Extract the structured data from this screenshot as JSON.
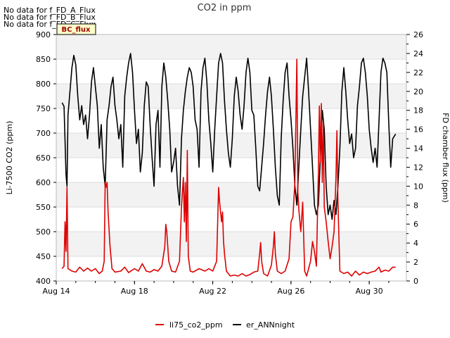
{
  "chart_data": {
    "type": "line",
    "title": "CO2 in ppm",
    "xlabel": "",
    "ylabel": "Li-7500 CO2 (ppm)",
    "y2label": "FD chamber flux (ppm)",
    "x_tick_labels": [
      "Aug 14",
      "Aug 18",
      "Aug 22",
      "Aug 26",
      "Aug 30"
    ],
    "x_tick_days": [
      14,
      18,
      22,
      26,
      30
    ],
    "xlim_days": [
      14,
      31.9
    ],
    "ylim": [
      400,
      900
    ],
    "y_ticks": [
      400,
      450,
      500,
      550,
      600,
      650,
      700,
      750,
      800,
      850,
      900
    ],
    "y2lim": [
      0,
      26
    ],
    "y2_ticks": [
      0,
      2,
      4,
      6,
      8,
      10,
      12,
      14,
      16,
      18,
      20,
      22,
      24,
      26
    ],
    "no_data_messages": [
      "No data for f_FD_A_Flux",
      "No data for f_FD_B_Flux",
      "No data for f_FD_C_Flux"
    ],
    "badge": "BC_flux",
    "legend_position": "bottom-center",
    "series": [
      {
        "name": "li75_co2_ppm",
        "axis": "left",
        "color": "#dd0000",
        "points": [
          [
            14.3,
            425
          ],
          [
            14.4,
            430
          ],
          [
            14.45,
            520
          ],
          [
            14.5,
            460
          ],
          [
            14.55,
            590
          ],
          [
            14.6,
            425
          ],
          [
            14.8,
            420
          ],
          [
            15.0,
            418
          ],
          [
            15.2,
            428
          ],
          [
            15.4,
            420
          ],
          [
            15.6,
            426
          ],
          [
            15.8,
            420
          ],
          [
            16.0,
            425
          ],
          [
            16.2,
            415
          ],
          [
            16.35,
            420
          ],
          [
            16.45,
            440
          ],
          [
            16.5,
            600
          ],
          [
            16.55,
            590
          ],
          [
            16.6,
            600
          ],
          [
            16.65,
            540
          ],
          [
            16.75,
            470
          ],
          [
            16.85,
            425
          ],
          [
            17.0,
            418
          ],
          [
            17.3,
            420
          ],
          [
            17.5,
            428
          ],
          [
            17.7,
            417
          ],
          [
            18.0,
            425
          ],
          [
            18.2,
            420
          ],
          [
            18.4,
            435
          ],
          [
            18.6,
            420
          ],
          [
            18.8,
            418
          ],
          [
            19.0,
            423
          ],
          [
            19.2,
            420
          ],
          [
            19.4,
            430
          ],
          [
            19.55,
            470
          ],
          [
            19.6,
            515
          ],
          [
            19.65,
            500
          ],
          [
            19.75,
            440
          ],
          [
            19.9,
            420
          ],
          [
            20.1,
            418
          ],
          [
            20.3,
            440
          ],
          [
            20.4,
            550
          ],
          [
            20.45,
            580
          ],
          [
            20.5,
            610
          ],
          [
            20.55,
            520
          ],
          [
            20.6,
            600
          ],
          [
            20.65,
            480
          ],
          [
            20.7,
            665
          ],
          [
            20.75,
            450
          ],
          [
            20.85,
            420
          ],
          [
            21.0,
            418
          ],
          [
            21.3,
            425
          ],
          [
            21.6,
            420
          ],
          [
            21.8,
            425
          ],
          [
            22.0,
            420
          ],
          [
            22.2,
            440
          ],
          [
            22.3,
            590
          ],
          [
            22.35,
            560
          ],
          [
            22.4,
            540
          ],
          [
            22.45,
            520
          ],
          [
            22.5,
            540
          ],
          [
            22.55,
            480
          ],
          [
            22.6,
            455
          ],
          [
            22.7,
            420
          ],
          [
            22.9,
            410
          ],
          [
            23.1,
            412
          ],
          [
            23.3,
            410
          ],
          [
            23.5,
            415
          ],
          [
            23.7,
            410
          ],
          [
            23.9,
            413
          ],
          [
            24.1,
            418
          ],
          [
            24.3,
            420
          ],
          [
            24.4,
            455
          ],
          [
            24.45,
            478
          ],
          [
            24.5,
            440
          ],
          [
            24.6,
            415
          ],
          [
            24.8,
            410
          ],
          [
            25.0,
            432
          ],
          [
            25.1,
            470
          ],
          [
            25.15,
            500
          ],
          [
            25.2,
            455
          ],
          [
            25.3,
            420
          ],
          [
            25.5,
            415
          ],
          [
            25.7,
            420
          ],
          [
            25.9,
            445
          ],
          [
            26.0,
            520
          ],
          [
            26.1,
            530
          ],
          [
            26.2,
            600
          ],
          [
            26.3,
            850
          ],
          [
            26.35,
            580
          ],
          [
            26.4,
            545
          ],
          [
            26.5,
            500
          ],
          [
            26.6,
            560
          ],
          [
            26.7,
            420
          ],
          [
            26.8,
            410
          ],
          [
            27.0,
            440
          ],
          [
            27.1,
            480
          ],
          [
            27.2,
            460
          ],
          [
            27.3,
            430
          ],
          [
            27.4,
            620
          ],
          [
            27.45,
            755
          ],
          [
            27.5,
            640
          ],
          [
            27.55,
            760
          ],
          [
            27.6,
            600
          ],
          [
            27.65,
            720
          ],
          [
            27.7,
            550
          ],
          [
            27.8,
            520
          ],
          [
            27.9,
            480
          ],
          [
            28.0,
            445
          ],
          [
            28.1,
            470
          ],
          [
            28.2,
            500
          ],
          [
            28.3,
            610
          ],
          [
            28.35,
            705
          ],
          [
            28.4,
            560
          ],
          [
            28.5,
            420
          ],
          [
            28.7,
            415
          ],
          [
            28.9,
            418
          ],
          [
            29.1,
            410
          ],
          [
            29.3,
            420
          ],
          [
            29.5,
            412
          ],
          [
            29.7,
            418
          ],
          [
            29.9,
            415
          ],
          [
            30.1,
            418
          ],
          [
            30.3,
            420
          ],
          [
            30.5,
            428
          ],
          [
            30.6,
            418
          ],
          [
            30.8,
            422
          ],
          [
            31.0,
            420
          ],
          [
            31.2,
            428
          ],
          [
            31.35,
            428
          ]
        ]
      },
      {
        "name": "er_ANNnight",
        "axis": "right",
        "color": "#000000",
        "points": [
          [
            14.3,
            18.8
          ],
          [
            14.4,
            18.4
          ],
          [
            14.5,
            11.2
          ],
          [
            14.55,
            10.0
          ],
          [
            14.6,
            17.5
          ],
          [
            14.7,
            20.0
          ],
          [
            14.8,
            22.5
          ],
          [
            14.9,
            23.8
          ],
          [
            15.0,
            22.8
          ],
          [
            15.1,
            19.5
          ],
          [
            15.2,
            17.0
          ],
          [
            15.3,
            18.5
          ],
          [
            15.4,
            16.5
          ],
          [
            15.5,
            17.5
          ],
          [
            15.6,
            15.0
          ],
          [
            15.7,
            17.5
          ],
          [
            15.8,
            21.0
          ],
          [
            15.9,
            22.5
          ],
          [
            16.0,
            20.5
          ],
          [
            16.1,
            18.5
          ],
          [
            16.2,
            14.0
          ],
          [
            16.3,
            16.5
          ],
          [
            16.4,
            12.0
          ],
          [
            16.5,
            10.0
          ],
          [
            16.6,
            17.0
          ],
          [
            16.7,
            18.5
          ],
          [
            16.8,
            20.5
          ],
          [
            16.9,
            21.5
          ],
          [
            17.0,
            18.5
          ],
          [
            17.1,
            17.0
          ],
          [
            17.2,
            15.0
          ],
          [
            17.3,
            16.5
          ],
          [
            17.4,
            12.0
          ],
          [
            17.5,
            19.5
          ],
          [
            17.6,
            21.5
          ],
          [
            17.7,
            23.0
          ],
          [
            17.8,
            24.0
          ],
          [
            17.9,
            22.0
          ],
          [
            18.0,
            18.0
          ],
          [
            18.1,
            14.5
          ],
          [
            18.2,
            16.0
          ],
          [
            18.3,
            11.5
          ],
          [
            18.4,
            13.5
          ],
          [
            18.5,
            18.5
          ],
          [
            18.6,
            21.0
          ],
          [
            18.7,
            20.5
          ],
          [
            18.8,
            16.5
          ],
          [
            18.9,
            13.0
          ],
          [
            19.0,
            10.0
          ],
          [
            19.1,
            16.5
          ],
          [
            19.2,
            18.0
          ],
          [
            19.3,
            12.0
          ],
          [
            19.4,
            20.5
          ],
          [
            19.5,
            23.0
          ],
          [
            19.6,
            21.5
          ],
          [
            19.7,
            19.0
          ],
          [
            19.8,
            16.0
          ],
          [
            19.9,
            11.5
          ],
          [
            20.0,
            12.5
          ],
          [
            20.1,
            14.0
          ],
          [
            20.2,
            10.0
          ],
          [
            20.3,
            8.0
          ],
          [
            20.4,
            15.0
          ],
          [
            20.5,
            18.0
          ],
          [
            20.6,
            20.0
          ],
          [
            20.7,
            21.5
          ],
          [
            20.8,
            22.5
          ],
          [
            20.9,
            22.0
          ],
          [
            21.0,
            20.5
          ],
          [
            21.1,
            17.0
          ],
          [
            21.2,
            16.0
          ],
          [
            21.3,
            12.0
          ],
          [
            21.4,
            20.0
          ],
          [
            21.5,
            22.5
          ],
          [
            21.6,
            23.5
          ],
          [
            21.7,
            21.0
          ],
          [
            21.8,
            17.0
          ],
          [
            21.9,
            14.5
          ],
          [
            22.0,
            11.5
          ],
          [
            22.1,
            16.0
          ],
          [
            22.2,
            19.5
          ],
          [
            22.3,
            23.0
          ],
          [
            22.4,
            24.0
          ],
          [
            22.5,
            23.0
          ],
          [
            22.6,
            19.0
          ],
          [
            22.7,
            16.0
          ],
          [
            22.8,
            13.5
          ],
          [
            22.9,
            12.0
          ],
          [
            23.0,
            15.0
          ],
          [
            23.1,
            19.5
          ],
          [
            23.2,
            21.5
          ],
          [
            23.3,
            20.0
          ],
          [
            23.4,
            17.5
          ],
          [
            23.5,
            16.0
          ],
          [
            23.6,
            18.5
          ],
          [
            23.7,
            22.0
          ],
          [
            23.8,
            23.5
          ],
          [
            23.9,
            22.0
          ],
          [
            24.0,
            18.0
          ],
          [
            24.1,
            17.5
          ],
          [
            24.2,
            14.0
          ],
          [
            24.3,
            10.0
          ],
          [
            24.4,
            9.5
          ],
          [
            24.5,
            12.0
          ],
          [
            24.6,
            14.5
          ],
          [
            24.7,
            17.5
          ],
          [
            24.8,
            20.0
          ],
          [
            24.9,
            21.5
          ],
          [
            25.0,
            19.5
          ],
          [
            25.1,
            16.0
          ],
          [
            25.2,
            12.0
          ],
          [
            25.3,
            9.0
          ],
          [
            25.4,
            8.0
          ],
          [
            25.5,
            15.0
          ],
          [
            25.6,
            19.0
          ],
          [
            25.7,
            22.0
          ],
          [
            25.8,
            23.0
          ],
          [
            25.9,
            19.5
          ],
          [
            26.0,
            17.0
          ],
          [
            26.1,
            14.0
          ],
          [
            26.2,
            10.0
          ],
          [
            26.3,
            8.0
          ],
          [
            26.4,
            12.0
          ],
          [
            26.5,
            16.0
          ],
          [
            26.6,
            19.5
          ],
          [
            26.7,
            21.5
          ],
          [
            26.8,
            23.5
          ],
          [
            26.9,
            20.0
          ],
          [
            27.0,
            16.0
          ],
          [
            27.1,
            12.0
          ],
          [
            27.2,
            8.0
          ],
          [
            27.3,
            7.0
          ],
          [
            27.4,
            8.0
          ],
          [
            27.5,
            13.0
          ],
          [
            27.6,
            18.0
          ],
          [
            27.7,
            16.0
          ],
          [
            27.8,
            10.0
          ],
          [
            27.9,
            7.0
          ],
          [
            28.0,
            8.0
          ],
          [
            28.1,
            6.5
          ],
          [
            28.2,
            8.5
          ],
          [
            28.3,
            7.0
          ],
          [
            28.4,
            10.0
          ],
          [
            28.5,
            14.0
          ],
          [
            28.6,
            20.0
          ],
          [
            28.7,
            22.5
          ],
          [
            28.8,
            20.0
          ],
          [
            28.9,
            17.0
          ],
          [
            29.0,
            14.5
          ],
          [
            29.1,
            15.5
          ],
          [
            29.2,
            13.0
          ],
          [
            29.3,
            14.0
          ],
          [
            29.4,
            18.5
          ],
          [
            29.5,
            20.5
          ],
          [
            29.6,
            23.0
          ],
          [
            29.7,
            23.5
          ],
          [
            29.8,
            22.0
          ],
          [
            29.9,
            19.5
          ],
          [
            30.0,
            16.0
          ],
          [
            30.1,
            14.0
          ],
          [
            30.2,
            12.5
          ],
          [
            30.3,
            14.0
          ],
          [
            30.4,
            12.0
          ],
          [
            30.5,
            17.0
          ],
          [
            30.6,
            22.0
          ],
          [
            30.7,
            23.5
          ],
          [
            30.8,
            23.0
          ],
          [
            30.9,
            22.0
          ],
          [
            31.0,
            16.5
          ],
          [
            31.1,
            12.0
          ],
          [
            31.2,
            15.0
          ],
          [
            31.35,
            15.5
          ]
        ]
      }
    ]
  }
}
